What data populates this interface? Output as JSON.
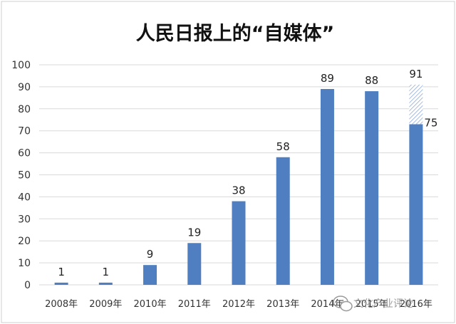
{
  "chart_data": {
    "type": "bar",
    "title": "人民日报上的“自媒体”",
    "categories": [
      "2008年",
      "2009年",
      "2010年",
      "2011年",
      "2012年",
      "2013年",
      "2014年",
      "2015年",
      "2016年"
    ],
    "series": [
      {
        "values": [
          1,
          1,
          9,
          19,
          38,
          58,
          89,
          88,
          73
        ]
      },
      {
        "values": [
          0,
          0,
          0,
          0,
          0,
          0,
          0,
          0,
          18
        ]
      }
    ],
    "data_labels": [
      "1",
      "1",
      "9",
      "19",
      "38",
      "58",
      "89",
      "88",
      "91"
    ],
    "extra_label": "75",
    "ylim": [
      0,
      100
    ],
    "yticks": [
      0,
      10,
      20,
      30,
      40,
      50,
      60,
      70,
      80,
      90,
      100
    ],
    "grid": true,
    "xlabel": "",
    "ylabel": "",
    "colors": {
      "bar": "#4f7fc1",
      "projection": "#9fb6dc",
      "grid": "#d9d9d9"
    }
  },
  "watermark": {
    "text": "文化产业评论",
    "icon": "wechat-icon"
  }
}
